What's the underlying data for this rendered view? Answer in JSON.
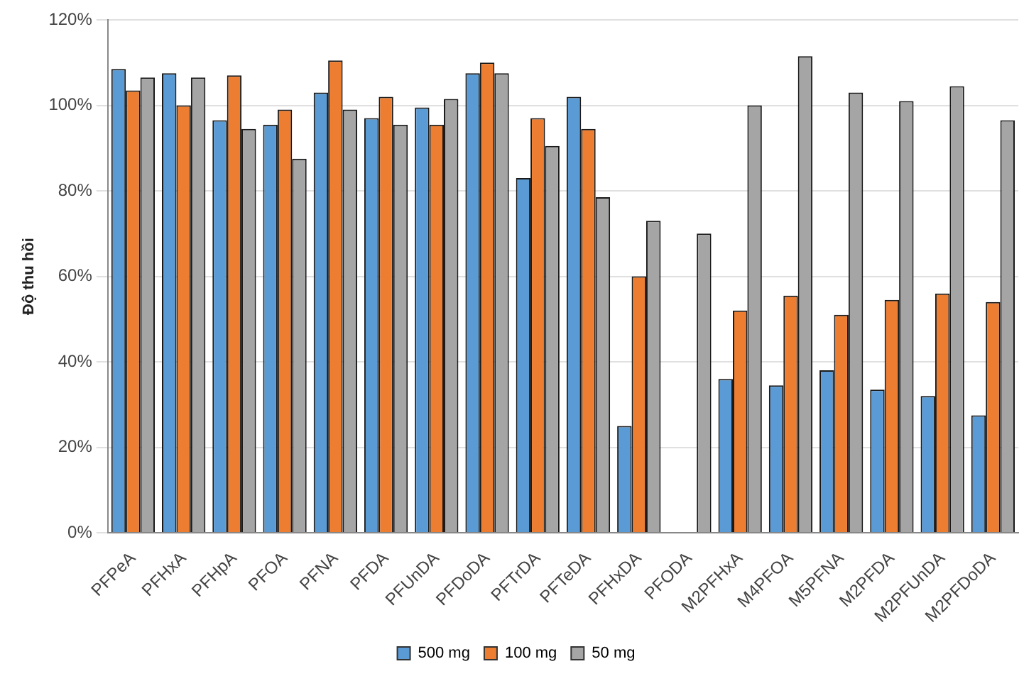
{
  "chart_data": {
    "type": "bar",
    "ylabel": "Độ thu hồi",
    "categories": [
      "PFPeA",
      "PFHxA",
      "PFHpA",
      "PFOA",
      "PFNA",
      "PFDA",
      "PFUnDA",
      "PFDoDA",
      "PFTrDA",
      "PFTeDA",
      "PFHxDA",
      "PFODA",
      "M2PFHxA",
      "M4PFOA",
      "M5PFNA",
      "M2PFDA",
      "M2PFUnDA",
      "M2PFDoDA"
    ],
    "series": [
      {
        "name": "500 mg",
        "color": "#5b9bd5",
        "values": [
          108.5,
          107.5,
          96.5,
          95.5,
          103,
          97,
          99.5,
          107.5,
          83,
          102,
          25,
          null,
          36,
          34.5,
          38,
          33.5,
          32,
          27.5
        ]
      },
      {
        "name": "100 mg",
        "color": "#ed7d31",
        "values": [
          103.5,
          100,
          107,
          99,
          110.5,
          102,
          95.5,
          110,
          97,
          94.5,
          60,
          null,
          52,
          55.5,
          51,
          54.5,
          56,
          54
        ]
      },
      {
        "name": "50 mg",
        "color": "#a5a5a5",
        "values": [
          106.5,
          106.5,
          94.5,
          87.5,
          99,
          95.5,
          101.5,
          107.5,
          90.5,
          78.5,
          73,
          70,
          100,
          111.5,
          103,
          101,
          104.5,
          96.5
        ]
      }
    ],
    "ylim": [
      0,
      120
    ],
    "yticks": [
      {
        "value": 0,
        "label": "0%"
      },
      {
        "value": 20,
        "label": "20%"
      },
      {
        "value": 40,
        "label": "40%"
      },
      {
        "value": 60,
        "label": "60%"
      },
      {
        "value": 80,
        "label": "80%"
      },
      {
        "value": 100,
        "label": "100%"
      },
      {
        "value": 120,
        "label": "120%"
      }
    ],
    "grid": "y",
    "legend": "bottom"
  }
}
